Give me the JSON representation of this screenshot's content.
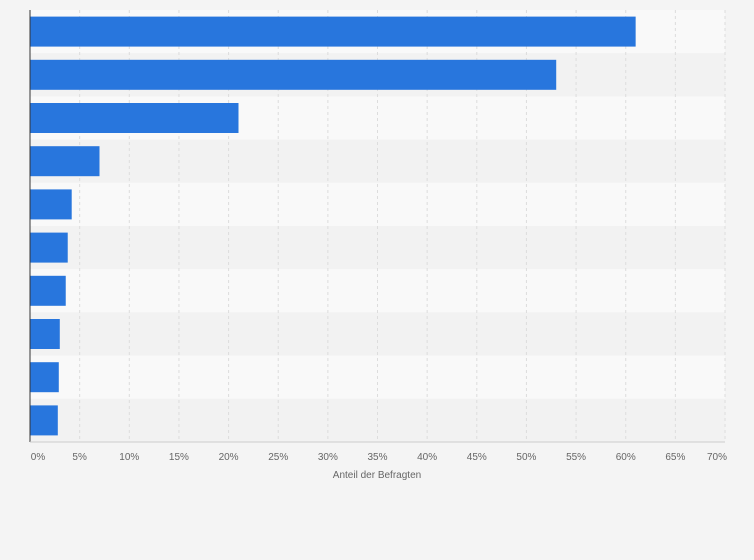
{
  "chart_data": {
    "type": "bar",
    "orientation": "horizontal",
    "title": "",
    "xlabel": "Anteil der Befragten",
    "ylabel": "",
    "categories": [
      "",
      "",
      "",
      "",
      "",
      "",
      "",
      "",
      "",
      ""
    ],
    "values": [
      61,
      53,
      21,
      7,
      4.2,
      3.8,
      3.6,
      3.0,
      2.9,
      2.8
    ],
    "xlim": [
      0,
      70
    ],
    "x_ticks": [
      "0%",
      "5%",
      "10%",
      "15%",
      "20%",
      "25%",
      "30%",
      "35%",
      "40%",
      "45%",
      "50%",
      "55%",
      "60%",
      "65%",
      "70%"
    ],
    "grid": true,
    "colors": {
      "bar": "#2876dd",
      "band_light": "#f9f9f9",
      "band_dark": "#f2f2f2",
      "grid": "#dddddd",
      "axis": "#333333"
    }
  }
}
